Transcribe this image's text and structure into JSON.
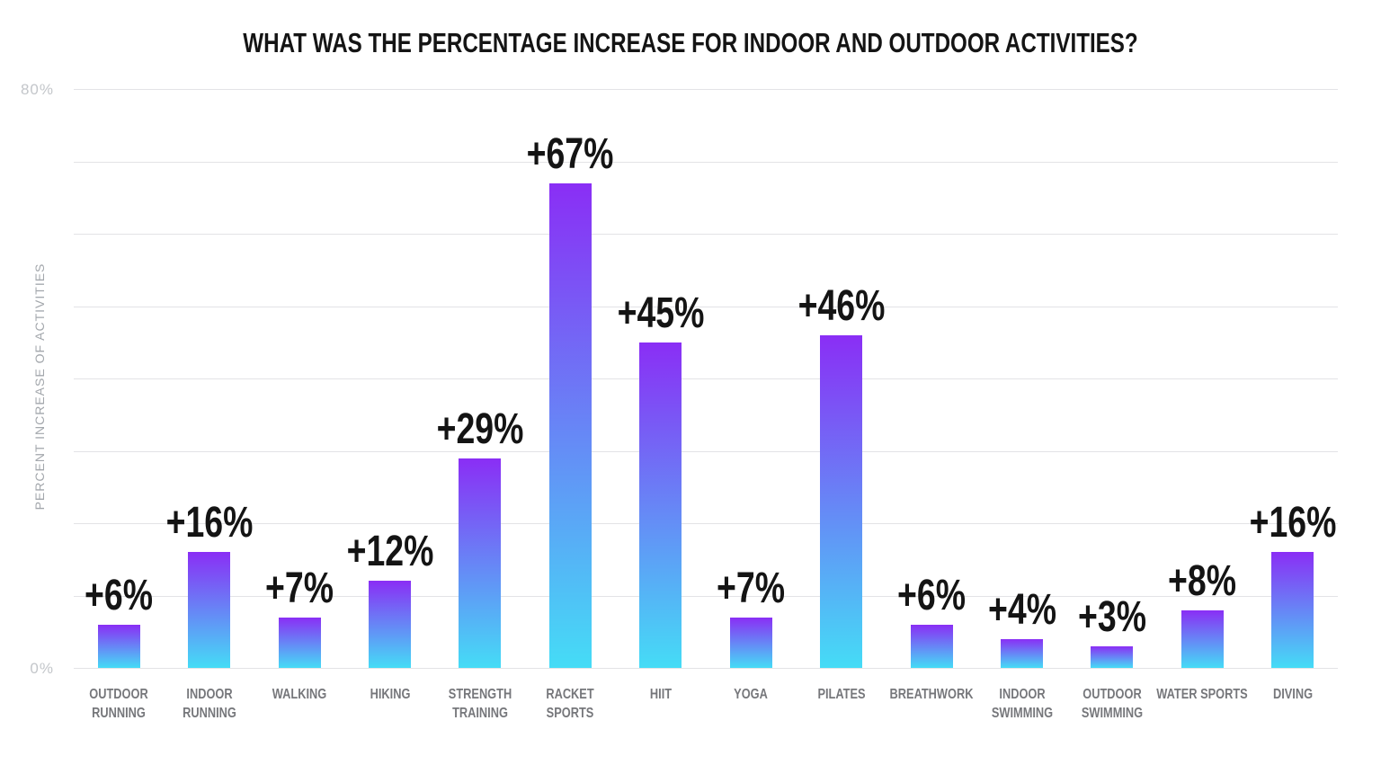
{
  "title": "WHAT WAS THE PERCENTAGE INCREASE FOR INDOOR AND OUTDOOR ACTIVITIES?",
  "y_axis": {
    "title": "PERCENT INCREASE OF ACTIVITIES",
    "top_tick": "80%",
    "bottom_tick": "0%"
  },
  "chart_data": {
    "type": "bar",
    "title": "WHAT WAS THE PERCENTAGE INCREASE FOR INDOOR AND OUTDOOR ACTIVITIES?",
    "categories": [
      "OUTDOOR RUNNING",
      "INDOOR RUNNING",
      "WALKING",
      "HIKING",
      "STRENGTH TRAINING",
      "RACKET SPORTS",
      "HIIT",
      "YOGA",
      "PILATES",
      "BREATHWORK",
      "INDOOR SWIMMING",
      "OUTDOOR SWIMMING",
      "WATER SPORTS",
      "DIVING"
    ],
    "values": [
      6,
      16,
      7,
      12,
      29,
      67,
      45,
      7,
      46,
      6,
      4,
      3,
      8,
      16
    ],
    "data_labels": [
      "+6%",
      "+16%",
      "+7%",
      "+12%",
      "+29%",
      "+67%",
      "+45%",
      "+7%",
      "+46%",
      "+6%",
      "+4%",
      "+3%",
      "+8%",
      "+16%"
    ],
    "xlabel": "",
    "ylabel": "PERCENT INCREASE OF ACTIVITIES",
    "ylim": [
      0,
      80
    ],
    "gridline_step": 10,
    "grid": true,
    "legend": "none"
  },
  "colors": {
    "bar_gradient_top": "#8a2ef5",
    "bar_gradient_bottom": "#45dcf6",
    "title_text": "#141414",
    "value_label_text": "#141414",
    "category_label_text": "#76777b",
    "tick_label_text": "#c3c6ca",
    "axis_title_text": "#a3a7ac",
    "gridline": "#e3e3e6",
    "background": "#ffffff"
  }
}
